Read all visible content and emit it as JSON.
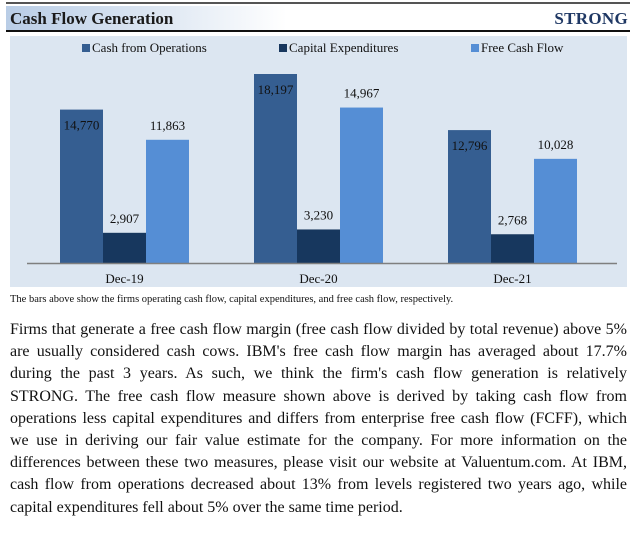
{
  "header": {
    "title": "Cash Flow Generation",
    "rating": "STRONG"
  },
  "colors": {
    "cash_from_operations": "#355e91",
    "capital_expenditures": "#17375e",
    "free_cash_flow": "#558ed5",
    "panel_background": "#dce6f1",
    "rating_text": "#1f3864"
  },
  "chart_data": {
    "type": "bar",
    "title": "Cash Flow Generation",
    "xlabel": "",
    "ylabel": "",
    "categories": [
      "Dec-19",
      "Dec-20",
      "Dec-21"
    ],
    "series": [
      {
        "name": "Cash from Operations",
        "color": "#355e91",
        "values": [
          14770,
          18197,
          12796
        ],
        "labels": [
          "14,770",
          "18,197",
          "12,796"
        ]
      },
      {
        "name": "Capital Expenditures",
        "color": "#17375e",
        "values": [
          2907,
          3230,
          2768
        ],
        "labels": [
          "2,907",
          "3,230",
          "2,768"
        ]
      },
      {
        "name": "Free Cash Flow",
        "color": "#558ed5",
        "values": [
          11863,
          14967,
          10028
        ],
        "labels": [
          "11,863",
          "14,967",
          "10,028"
        ]
      }
    ],
    "ylim": [
      0,
      18197
    ],
    "grid": false,
    "legend_position": "top",
    "caption": "The bars above show the firms operating cash flow, capital expenditures, and free cash flow, respectively."
  },
  "body": {
    "paragraph": "Firms that generate a free cash flow margin (free cash flow divided by total revenue) above 5% are usually considered cash cows. IBM's free cash flow margin has averaged about 17.7% during the past 3 years. As such, we think the firm's cash flow generation is relatively STRONG. The free cash flow measure shown above is derived by taking cash flow from operations less capital expenditures and differs from enterprise free cash flow (FCFF), which we use in deriving our fair value estimate for the company. For more information on the differences between these two measures, please visit our website at Valuentum.com. At IBM, cash flow from operations decreased about 13% from levels registered two years ago, while capital expenditures fell about 5% over the same time period."
  }
}
